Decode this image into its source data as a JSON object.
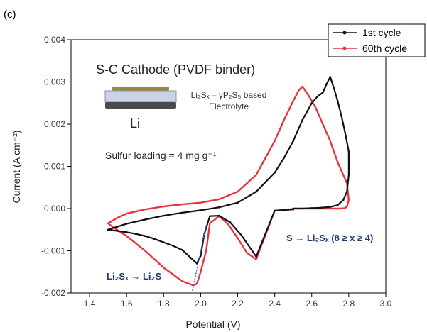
{
  "panel_label": "(c)",
  "colors": {
    "cycle1": "#111111",
    "cycle60": "#e8343c",
    "annotation": "#1f3b78",
    "tangent": "#3a6fd8"
  },
  "annotations": {
    "cathode_title": "S-C Cathode (PVDF binder)",
    "anode_label": "Li",
    "electrolyte_line1_html": "Li₂Sₓ – γP₂S₅ based",
    "electrolyte_line2": "Electrolyte",
    "sulfur_loading": "Sulfur loading = 4 mg g⁻¹",
    "reaction_right": "S → Li₂Sₓ (8 ≥ x ≥ 4)",
    "reaction_left": "Li₂Sₓ → Li₂S"
  },
  "chart_data": {
    "type": "line",
    "xlabel": "Potential (V)",
    "ylabel": "Current (A cm⁻²)",
    "xlim": [
      1.3,
      3.0
    ],
    "ylim": [
      -0.002,
      0.004
    ],
    "xticks": [
      1.4,
      1.6,
      1.8,
      2.0,
      2.2,
      2.4,
      2.6,
      2.8,
      3.0
    ],
    "xtick_labels": [
      "1.4",
      "1.6",
      "1.8",
      "2.0",
      "2.2",
      "2.4",
      "2.6",
      "2.8",
      "3.0"
    ],
    "yticks": [
      -0.002,
      -0.001,
      0.0,
      0.001,
      0.002,
      0.003,
      0.004
    ],
    "ytick_labels": [
      "-0.002",
      "-0.001",
      "0.000",
      "0.001",
      "0.002",
      "0.003",
      "0.004"
    ],
    "legend_position": "top-right",
    "series": [
      {
        "name": "1st cycle",
        "x": [
          2.5,
          2.4,
          2.3,
          2.22,
          2.16,
          2.1,
          2.05,
          2.02,
          2.0,
          1.98,
          1.95,
          1.9,
          1.85,
          1.8,
          1.75,
          1.7,
          1.65,
          1.6,
          1.55,
          1.5,
          1.55,
          1.6,
          1.7,
          1.8,
          1.9,
          2.0,
          2.1,
          2.2,
          2.3,
          2.4,
          2.45,
          2.5,
          2.55,
          2.6,
          2.63,
          2.66,
          2.68,
          2.7,
          2.72,
          2.74,
          2.76,
          2.78,
          2.8,
          2.8,
          2.79,
          2.77,
          2.74,
          2.7,
          2.65,
          2.6,
          2.55,
          2.5
        ],
        "y": [
          -2e-05,
          -5e-05,
          -0.00114,
          -0.00063,
          -0.00033,
          -0.00017,
          -0.00018,
          -0.0006,
          -0.00112,
          -0.0013,
          -0.00118,
          -0.00098,
          -0.00088,
          -0.0008,
          -0.00072,
          -0.00065,
          -0.0006,
          -0.00056,
          -0.00053,
          -0.0005,
          -0.00043,
          -0.00036,
          -0.00026,
          -0.00017,
          -0.0001,
          -4e-05,
          3e-05,
          0.00014,
          0.0004,
          0.00085,
          0.0012,
          0.0016,
          0.0021,
          0.0025,
          0.00265,
          0.00275,
          0.00295,
          0.00312,
          0.00285,
          0.00255,
          0.0022,
          0.0018,
          0.00135,
          0.0008,
          0.0004,
          0.0002,
          8e-05,
          4e-05,
          2e-05,
          1e-05,
          0.0,
          0.0
        ]
      },
      {
        "name": "60th cycle",
        "x": [
          2.5,
          2.4,
          2.3,
          2.25,
          2.2,
          2.15,
          2.1,
          2.05,
          2.03,
          2.0,
          1.98,
          1.96,
          1.9,
          1.8,
          1.7,
          1.6,
          1.52,
          1.5,
          1.55,
          1.6,
          1.7,
          1.8,
          1.9,
          2.0,
          2.1,
          2.2,
          2.3,
          2.4,
          2.45,
          2.5,
          2.53,
          2.55,
          2.58,
          2.62,
          2.66,
          2.7,
          2.74,
          2.77,
          2.79,
          2.8,
          2.79,
          2.78,
          2.75,
          2.7,
          2.65,
          2.6,
          2.55,
          2.5
        ],
        "y": [
          -1e-05,
          -5e-05,
          -0.0012,
          -0.00105,
          -0.0007,
          -0.00038,
          -0.00018,
          -0.00035,
          -0.001,
          -0.0015,
          -0.00178,
          -0.00182,
          -0.00172,
          -0.0014,
          -0.001,
          -0.00065,
          -0.00042,
          -0.00035,
          -0.00022,
          -0.00012,
          -2e-05,
          5e-05,
          0.0001,
          0.00014,
          0.00022,
          0.0004,
          0.0008,
          0.0016,
          0.0021,
          0.00255,
          0.0028,
          0.00289,
          0.0027,
          0.0024,
          0.002,
          0.0016,
          0.0011,
          0.0008,
          0.0006,
          0.0002,
          5e-05,
          1e-05,
          0.0,
          0.0,
          0.0,
          0.0,
          0.0,
          0.0
        ]
      }
    ]
  }
}
